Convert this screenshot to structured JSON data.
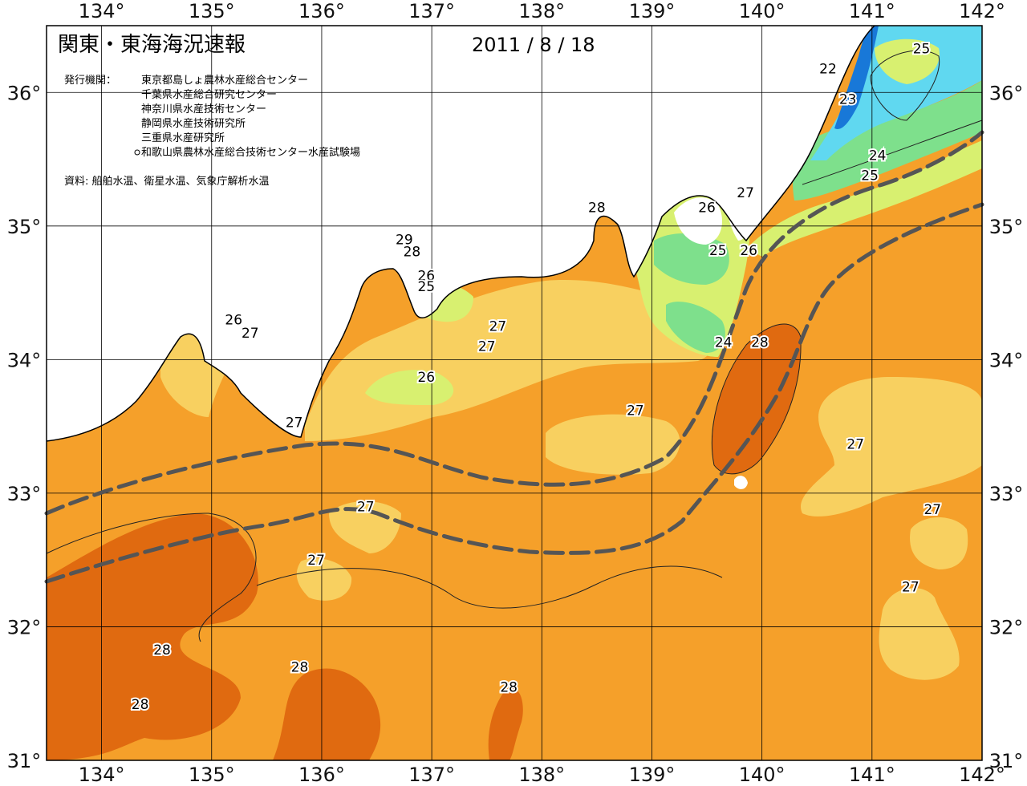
{
  "title": "関東・東海海況速報",
  "date": "2011 / 8 / 18",
  "issuers_label": "発行機関：",
  "issuers": [
    "東京都島しょ農林水産総合センター",
    "千葉県水産総合研究センター",
    "神奈川県水産技術センター",
    "静岡県水産技術研究所",
    "三重県水産研究所",
    "和歌山県農林水産総合技術センター水産試験場"
  ],
  "source_note": "資料: 船舶水温、衛星水温、気象庁解析水温",
  "axes": {
    "lon_ticks": [
      "134°",
      "135°",
      "136°",
      "137°",
      "138°",
      "139°",
      "140°",
      "141°",
      "142°"
    ],
    "lat_ticks": [
      "36°",
      "35°",
      "34°",
      "33°",
      "32°",
      "31°"
    ],
    "lon_range": [
      133.5,
      142
    ],
    "lat_range": [
      31,
      36.5
    ]
  },
  "colors": {
    "t28": "#e06a10",
    "t27": "#f5a02a",
    "t26": "#f8d060",
    "t25": "#d8f070",
    "t24": "#7ee08c",
    "t23": "#60d8f0",
    "t22": "#1878d8",
    "land": "#ffffff",
    "kuroshio": "#555555"
  },
  "contour_labels": [
    {
      "text": "25",
      "lon": 141.45,
      "lat": 36.33
    },
    {
      "text": "22",
      "lon": 140.6,
      "lat": 36.18
    },
    {
      "text": "23",
      "lon": 140.78,
      "lat": 35.95
    },
    {
      "text": "24",
      "lon": 141.05,
      "lat": 35.53
    },
    {
      "text": "25",
      "lon": 140.98,
      "lat": 35.38
    },
    {
      "text": "27",
      "lon": 139.85,
      "lat": 35.25
    },
    {
      "text": "26",
      "lon": 139.5,
      "lat": 35.14
    },
    {
      "text": "28",
      "lon": 138.5,
      "lat": 35.14
    },
    {
      "text": "25",
      "lon": 139.6,
      "lat": 34.82
    },
    {
      "text": "26",
      "lon": 139.88,
      "lat": 34.82
    },
    {
      "text": "29",
      "lon": 136.75,
      "lat": 34.9
    },
    {
      "text": "28",
      "lon": 136.82,
      "lat": 34.81
    },
    {
      "text": "26",
      "lon": 136.95,
      "lat": 34.63
    },
    {
      "text": "25",
      "lon": 136.95,
      "lat": 34.55
    },
    {
      "text": "26",
      "lon": 135.2,
      "lat": 34.3
    },
    {
      "text": "27",
      "lon": 135.35,
      "lat": 34.2
    },
    {
      "text": "27",
      "lon": 137.6,
      "lat": 34.25
    },
    {
      "text": "27",
      "lon": 137.5,
      "lat": 34.1
    },
    {
      "text": "24",
      "lon": 139.65,
      "lat": 34.13
    },
    {
      "text": "28",
      "lon": 139.98,
      "lat": 34.13
    },
    {
      "text": "26",
      "lon": 136.95,
      "lat": 33.87
    },
    {
      "text": "27",
      "lon": 138.85,
      "lat": 33.62
    },
    {
      "text": "27",
      "lon": 135.75,
      "lat": 33.53
    },
    {
      "text": "27",
      "lon": 140.85,
      "lat": 33.37
    },
    {
      "text": "27",
      "lon": 136.4,
      "lat": 32.9
    },
    {
      "text": "27",
      "lon": 141.55,
      "lat": 32.88
    },
    {
      "text": "27",
      "lon": 135.95,
      "lat": 32.5
    },
    {
      "text": "27",
      "lon": 141.35,
      "lat": 32.3
    },
    {
      "text": "28",
      "lon": 134.55,
      "lat": 31.83
    },
    {
      "text": "28",
      "lon": 135.8,
      "lat": 31.7
    },
    {
      "text": "28",
      "lon": 137.7,
      "lat": 31.55
    },
    {
      "text": "28",
      "lon": 134.35,
      "lat": 31.42
    }
  ]
}
